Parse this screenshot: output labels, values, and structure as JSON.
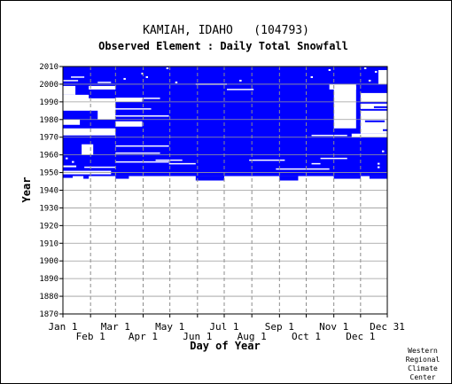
{
  "chart_data": {
    "type": "heatmap",
    "title": "KAMIAH, IDAHO   (104793)",
    "subtitle": "Observed Element : Daily Total Snowfall",
    "xlabel": "Day of Year",
    "ylabel": "Year",
    "ylim": [
      1870,
      2010
    ],
    "y_ticks": [
      1870,
      1880,
      1890,
      1900,
      1910,
      1920,
      1930,
      1940,
      1950,
      1960,
      1970,
      1980,
      1990,
      2000,
      2010
    ],
    "x_ticks_top": [
      {
        "label": "Jan 1",
        "day": 1
      },
      {
        "label": "Mar 1",
        "day": 60
      },
      {
        "label": "May 1",
        "day": 121
      },
      {
        "label": "Jul 1",
        "day": 182
      },
      {
        "label": "Sep 1",
        "day": 244
      },
      {
        "label": "Nov 1",
        "day": 305
      },
      {
        "label": "Dec 31",
        "day": 365
      }
    ],
    "x_ticks_bottom": [
      {
        "label": "Feb 1",
        "day": 32
      },
      {
        "label": "Apr 1",
        "day": 91
      },
      {
        "label": "Jun 1",
        "day": 152
      },
      {
        "label": "Aug 1",
        "day": 213
      },
      {
        "label": "Oct 1",
        "day": 274
      },
      {
        "label": "Dec 1",
        "day": 335
      }
    ],
    "grid": true,
    "color_present": "#0000ff",
    "coverage": {
      "description_of_blocks": "observed records",
      "blocks": [
        {
          "day_start": 1,
          "day_end": 365,
          "year_start": 1948,
          "year_end": 2010
        },
        {
          "day_start": 1,
          "day_end": 365,
          "year_start": 1970,
          "year_end": 2010
        }
      ]
    },
    "gaps": [
      {
        "day_start": 1,
        "day_end": 60,
        "year_start": 1971,
        "year_end": 1975
      },
      {
        "day_start": 1,
        "day_end": 60,
        "year_start": 1985,
        "year_end": 1992
      },
      {
        "day_start": 1,
        "day_end": 20,
        "year_start": 1977,
        "year_end": 1980
      },
      {
        "day_start": 22,
        "day_end": 35,
        "year_start": 1960,
        "year_end": 1966
      },
      {
        "day_start": 40,
        "day_end": 60,
        "year_start": 1980,
        "year_end": 1989
      },
      {
        "day_start": 60,
        "day_end": 90,
        "year_start": 1976,
        "year_end": 1979
      },
      {
        "day_start": 305,
        "day_end": 330,
        "year_start": 1975,
        "year_end": 1999
      },
      {
        "day_start": 335,
        "day_end": 365,
        "year_start": 1972,
        "year_end": 1985
      },
      {
        "day_start": 335,
        "day_end": 365,
        "year_start": 1986,
        "year_end": 1989
      },
      {
        "day_start": 335,
        "day_end": 365,
        "year_start": 1990,
        "year_end": 1995
      },
      {
        "day_start": 325,
        "day_end": 365,
        "year_start": 1970,
        "year_end": 1972
      },
      {
        "day_start": 300,
        "day_end": 330,
        "year_start": 1997,
        "year_end": 2000
      },
      {
        "day_start": 1,
        "day_end": 30,
        "year_start": 1990,
        "year_end": 1994
      },
      {
        "day_start": 1,
        "day_end": 15,
        "year_start": 1994,
        "year_end": 1999
      },
      {
        "day_start": 60,
        "day_end": 90,
        "year_start": 1990,
        "year_end": 1992
      },
      {
        "day_start": 30,
        "day_end": 60,
        "year_start": 1997,
        "year_end": 1999
      },
      {
        "day_start": 355,
        "day_end": 365,
        "year_start": 2000,
        "year_end": 2008
      },
      {
        "day_start": 1,
        "day_end": 55,
        "year_start": 1949,
        "year_end": 1951
      },
      {
        "day_start": 1,
        "day_end": 16,
        "year_start": 1953,
        "year_end": 1954
      }
    ],
    "white_lines": [
      {
        "day_start": 10,
        "day_end": 25,
        "year": 2004
      },
      {
        "day_start": 1,
        "day_end": 18,
        "year": 2002
      },
      {
        "day_start": 40,
        "day_end": 55,
        "year": 2001
      },
      {
        "day_start": 60,
        "day_end": 110,
        "year": 1992
      },
      {
        "day_start": 60,
        "day_end": 100,
        "year": 1986
      },
      {
        "day_start": 60,
        "day_end": 120,
        "year": 1982
      },
      {
        "day_start": 60,
        "day_end": 120,
        "year": 1965
      },
      {
        "day_start": 60,
        "day_end": 110,
        "year": 1961
      },
      {
        "day_start": 60,
        "day_end": 120,
        "year": 1956
      },
      {
        "day_start": 105,
        "day_end": 135,
        "year": 1957
      },
      {
        "day_start": 120,
        "day_end": 150,
        "year": 1955
      },
      {
        "day_start": 185,
        "day_end": 215,
        "year": 1997
      },
      {
        "day_start": 150,
        "day_end": 185,
        "year": 2000
      },
      {
        "day_start": 280,
        "day_end": 320,
        "year": 1971
      },
      {
        "day_start": 290,
        "day_end": 320,
        "year": 1958
      },
      {
        "day_start": 240,
        "day_end": 300,
        "year": 1952
      },
      {
        "day_start": 210,
        "day_end": 250,
        "year": 1957
      },
      {
        "day_start": 280,
        "day_end": 290,
        "year": 1955
      },
      {
        "day_start": 25,
        "day_end": 60,
        "year": 1953
      }
    ],
    "white_spots": [
      {
        "day": 70,
        "year": 2003
      },
      {
        "day": 90,
        "year": 2006
      },
      {
        "day": 95,
        "year": 2004
      },
      {
        "day": 118,
        "year": 2009
      },
      {
        "day": 128,
        "year": 2001
      },
      {
        "day": 340,
        "year": 2009
      },
      {
        "day": 352,
        "year": 2007
      },
      {
        "day": 360,
        "year": 2004
      },
      {
        "day": 345,
        "year": 2002
      },
      {
        "day": 300,
        "year": 2008
      },
      {
        "day": 280,
        "year": 2004
      },
      {
        "day": 200,
        "year": 2002
      },
      {
        "day": 360,
        "year": 1962
      },
      {
        "day": 355,
        "year": 1955
      },
      {
        "day": 355,
        "year": 1953
      },
      {
        "day": 12,
        "year": 1956
      },
      {
        "day": 5,
        "year": 1958
      }
    ],
    "blue_spots_below": [
      {
        "day_start": 1,
        "day_end": 10,
        "year": 1983
      },
      {
        "day_start": 20,
        "day_end": 30,
        "year": 1982
      },
      {
        "day_start": 340,
        "day_end": 362,
        "year": 1979
      },
      {
        "day_start": 350,
        "day_end": 365,
        "year": 1987
      },
      {
        "day_start": 360,
        "day_end": 365,
        "year": 1974
      }
    ]
  },
  "footer": {
    "credit_lines": [
      "Western",
      "Regional",
      "Climate",
      "Center"
    ]
  }
}
